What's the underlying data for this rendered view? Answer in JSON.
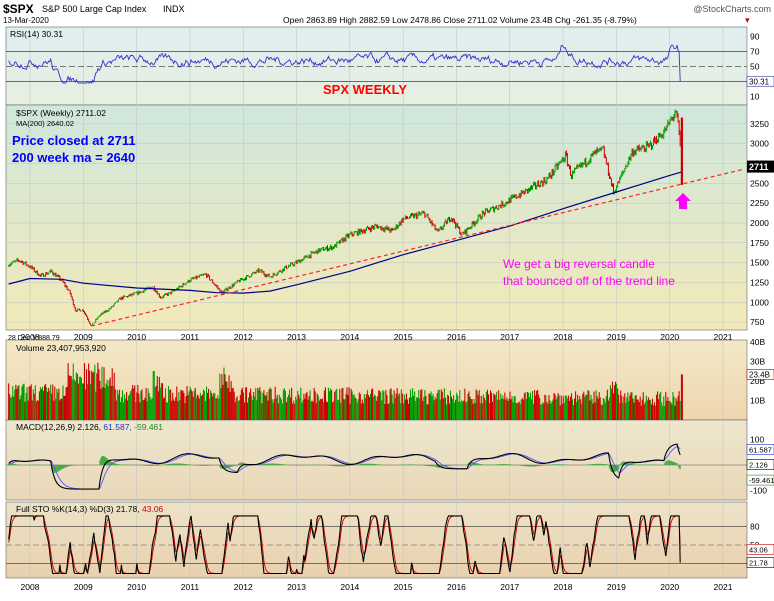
{
  "header": {
    "symbol": "$SPX",
    "name": "S&P 500 Large Cap Index",
    "exchange": "INDX",
    "date": "13-Mar-2020",
    "quote_line": "Open 2863.89  High 2882.59  Low 2478.86  Close 2711.02  Volume 23.4B  Chg -261.35 (-8.79%)",
    "chg_arrow": "▾",
    "watermark": "@StockCharts.com"
  },
  "colors": {
    "rsi_line": "#3333cc",
    "price_up": "#00a000",
    "price_down": "#cc0000",
    "ma_line": "#000088",
    "trend_line": "#ff2222",
    "annotation_blue": "#0000ff",
    "annotation_magenta": "#ff00ff",
    "annotation_red": "#ff0000",
    "macd_line": "#000000",
    "macd_signal": "#5555ff",
    "macd_hist": "#44aa44"
  },
  "chart_data": {
    "type": "line",
    "timeframe": "weekly",
    "x_years": [
      "2008",
      "2009",
      "2010",
      "2011",
      "2012",
      "2013",
      "2014",
      "2015",
      "2016",
      "2017",
      "2018",
      "2019",
      "2020",
      "2021"
    ],
    "price_panel": {
      "label": "$SPX (Weekly) 2711.02",
      "ma_label": "MA(200) 2640.02",
      "ylim": [
        650,
        3450
      ],
      "y_ticks": [
        750,
        1000,
        1250,
        1500,
        1750,
        2000,
        2250,
        2500,
        2750,
        3000,
        3250
      ],
      "last_value_label": "2711",
      "low_label": "28 Dec Y:888.79",
      "price_series": [
        [
          2007.6,
          1480
        ],
        [
          2007.8,
          1530
        ],
        [
          2008.0,
          1450
        ],
        [
          2008.2,
          1330
        ],
        [
          2008.4,
          1390
        ],
        [
          2008.6,
          1270
        ],
        [
          2008.75,
          1120
        ],
        [
          2008.85,
          900
        ],
        [
          2009.0,
          900
        ],
        [
          2009.15,
          700
        ],
        [
          2009.3,
          830
        ],
        [
          2009.5,
          920
        ],
        [
          2009.7,
          1050
        ],
        [
          2010.0,
          1110
        ],
        [
          2010.3,
          1200
        ],
        [
          2010.45,
          1060
        ],
        [
          2010.7,
          1140
        ],
        [
          2011.0,
          1280
        ],
        [
          2011.3,
          1350
        ],
        [
          2011.6,
          1120
        ],
        [
          2011.9,
          1260
        ],
        [
          2012.3,
          1400
        ],
        [
          2012.5,
          1320
        ],
        [
          2012.8,
          1440
        ],
        [
          2013.0,
          1500
        ],
        [
          2013.4,
          1650
        ],
        [
          2013.7,
          1700
        ],
        [
          2014.0,
          1850
        ],
        [
          2014.5,
          1960
        ],
        [
          2014.8,
          1900
        ],
        [
          2015.0,
          2050
        ],
        [
          2015.4,
          2120
        ],
        [
          2015.65,
          1880
        ],
        [
          2015.9,
          2080
        ],
        [
          2016.1,
          1850
        ],
        [
          2016.5,
          2120
        ],
        [
          2016.9,
          2250
        ],
        [
          2017.3,
          2400
        ],
        [
          2017.7,
          2550
        ],
        [
          2018.05,
          2850
        ],
        [
          2018.15,
          2600
        ],
        [
          2018.6,
          2880
        ],
        [
          2018.75,
          2920
        ],
        [
          2018.95,
          2380
        ],
        [
          2019.3,
          2900
        ],
        [
          2019.6,
          2960
        ],
        [
          2019.9,
          3150
        ],
        [
          2020.1,
          3390
        ],
        [
          2020.15,
          3300
        ],
        [
          2020.2,
          2950
        ],
        [
          2020.21,
          2711
        ]
      ],
      "ma_series": [
        [
          2007.6,
          1230
        ],
        [
          2008.0,
          1300
        ],
        [
          2008.6,
          1290
        ],
        [
          2009.0,
          1240
        ],
        [
          2010.0,
          1180
        ],
        [
          2011.0,
          1150
        ],
        [
          2011.5,
          1120
        ],
        [
          2012.0,
          1115
        ],
        [
          2012.5,
          1140
        ],
        [
          2013.0,
          1220
        ],
        [
          2014.0,
          1390
        ],
        [
          2015.0,
          1600
        ],
        [
          2016.0,
          1780
        ],
        [
          2017.0,
          1960
        ],
        [
          2018.0,
          2180
        ],
        [
          2019.0,
          2390
        ],
        [
          2020.0,
          2600
        ],
        [
          2020.21,
          2640
        ]
      ],
      "trend_line": [
        [
          2009.15,
          700
        ],
        [
          2021.4,
          2680
        ]
      ]
    },
    "rsi_panel": {
      "label": "RSI(14) 30.31",
      "ylim": [
        0,
        100
      ],
      "y_ticks": [
        10,
        30,
        50,
        70,
        90
      ],
      "last_value_label": "30.31"
    },
    "volume_panel": {
      "label": "Volume 23,407,953,920",
      "ylim": [
        0,
        40
      ],
      "y_ticks_labels": [
        "10B",
        "20B",
        "30B",
        "40B"
      ],
      "y_ticks": [
        10,
        20,
        30,
        40
      ],
      "last_value_label": "23.4B"
    },
    "macd_panel": {
      "label": "MACD(12,26,9) 2.126, 61.587, -59.461",
      "label_main": "MACD(12,26,9) 2.126,",
      "label_signal": "61.587,",
      "label_hist": "-59.461",
      "ylim": [
        -130,
        130
      ],
      "y_ticks": [
        -100,
        0,
        100
      ],
      "last_value_labels": [
        "61.587",
        "2.126",
        "-59.461"
      ]
    },
    "sto_panel": {
      "label": "Full STO %K(14,3) %D(3) 21.78, 43.06",
      "label_main": "Full STO %K(14,3) %D(3) 21.78,",
      "label_d": "43.06",
      "ylim": [
        0,
        100
      ],
      "y_ticks": [
        20,
        50,
        80
      ],
      "last_value_labels": [
        "43.06",
        "21.78"
      ]
    }
  },
  "annotations": {
    "spx_weekly": "SPX WEEKLY",
    "price_closed": "Price closed at 2711",
    "ma_value": "200 week ma = 2640",
    "reversal_1": "We get a big reversal candle",
    "reversal_2": "that bounced off of the trend line"
  }
}
